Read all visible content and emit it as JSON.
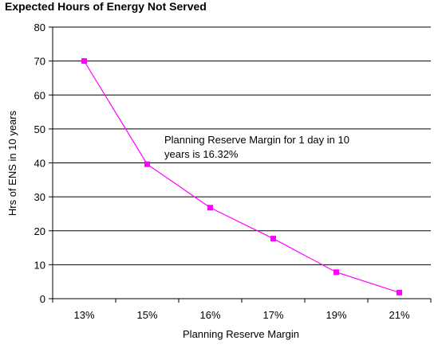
{
  "chart_data": {
    "type": "line",
    "title": "Expected Hours of Energy Not Served",
    "xlabel": "Planning Reserve Margin",
    "ylabel": "Hrs of ENS in 10 years",
    "categories": [
      "13%",
      "15%",
      "16%",
      "17%",
      "19%",
      "21%"
    ],
    "series": [
      {
        "values": [
          70,
          39.6,
          26.8,
          17.7,
          7.8,
          1.8
        ]
      }
    ],
    "ylim": [
      0,
      80
    ],
    "yticks": [
      "0",
      "10",
      "20",
      "30",
      "40",
      "50",
      "60",
      "70",
      "80"
    ],
    "grid": true,
    "legend": "none",
    "annotation": [
      "Planning Reserve Margin for 1 day in 10",
      "years is 16.32%"
    ],
    "colors": {
      "series": "#ff00ff",
      "axis": "#000000",
      "grid": "#000000"
    }
  }
}
